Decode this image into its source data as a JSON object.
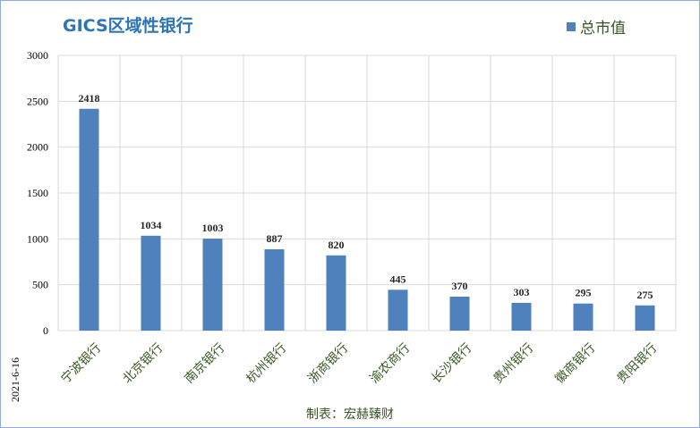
{
  "chart_data": {
    "type": "bar",
    "title": "GICS区域性银行",
    "categories": [
      "宁波银行",
      "北京银行",
      "南京银行",
      "杭州银行",
      "浙商银行",
      "渝农商行",
      "长沙银行",
      "贵州银行",
      "徽商银行",
      "贵阳银行"
    ],
    "series": [
      {
        "name": "总市值",
        "values": [
          2418,
          1034,
          1003,
          887,
          820,
          445,
          370,
          303,
          295,
          275
        ]
      }
    ],
    "ylim": [
      0,
      3000
    ],
    "yticks": [
      0,
      500,
      1000,
      1500,
      2000,
      2500,
      3000
    ],
    "grid": true,
    "legend_position": "top-right",
    "bar_color": "#4f81bd",
    "date": "2021-6-16",
    "credit": "制表：宏赫臻财"
  }
}
